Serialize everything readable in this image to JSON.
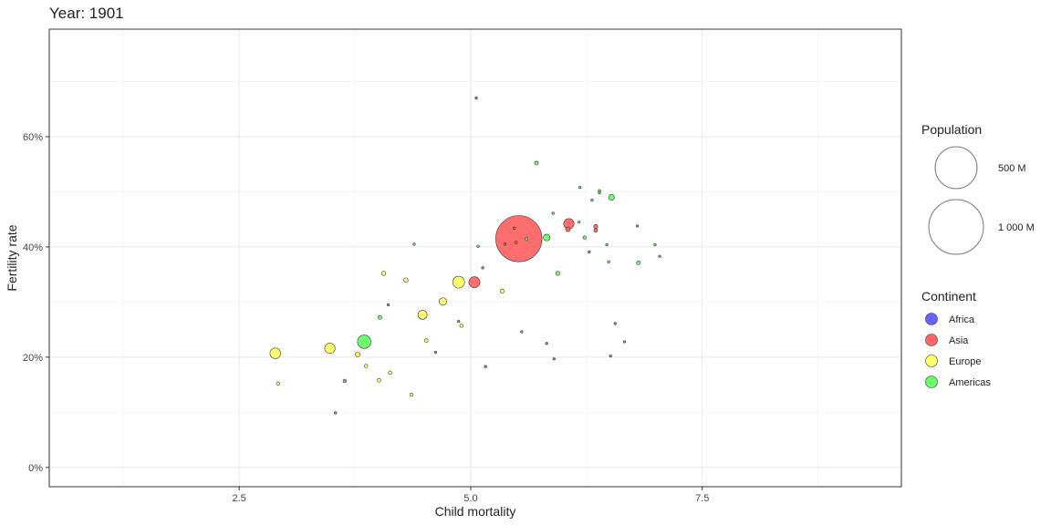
{
  "chart_data": {
    "type": "scatter",
    "title": "Year: 1901",
    "xlabel": "Child mortality",
    "ylabel": "Fertility rate",
    "xlim": [
      0.45,
      9.65
    ],
    "ylim": [
      -0.035,
      0.795
    ],
    "x_ticks": [
      2.5,
      5.0,
      7.5
    ],
    "x_tick_labels": [
      "2.5",
      "5.0",
      "7.5"
    ],
    "x_minor": [
      1.25,
      3.75,
      6.25,
      8.75
    ],
    "y_ticks": [
      0,
      0.2,
      0.4,
      0.6
    ],
    "y_tick_labels": [
      "0%",
      "20%",
      "40%",
      "60%"
    ],
    "y_minor": [
      0.1,
      0.3,
      0.5,
      0.7
    ],
    "grid": true,
    "size_legend": {
      "title": "Population",
      "entries": [
        {
          "label": "500 M",
          "value": 500
        },
        {
          "label": "1 000 M",
          "value": 1000
        }
      ]
    },
    "color_legend": {
      "title": "Continent",
      "entries": [
        {
          "label": "Africa",
          "color": "#6666ff"
        },
        {
          "label": "Asia",
          "color": "#ff6666"
        },
        {
          "label": "Europe",
          "color": "#ffff66"
        },
        {
          "label": "Americas",
          "color": "#66ff66"
        }
      ]
    },
    "other_color": "#999999",
    "points": [
      {
        "x": 5.52,
        "y": 0.415,
        "pop": 380,
        "group": "Asia"
      },
      {
        "x": 5.04,
        "y": 0.336,
        "pop": 22,
        "group": "Asia"
      },
      {
        "x": 6.06,
        "y": 0.442,
        "pop": 19,
        "group": "Asia"
      },
      {
        "x": 6.05,
        "y": 0.432,
        "pop": 4,
        "group": "Asia"
      },
      {
        "x": 6.35,
        "y": 0.437,
        "pop": 3,
        "group": "Asia"
      },
      {
        "x": 6.35,
        "y": 0.43,
        "pop": 2.5,
        "group": "Asia"
      },
      {
        "x": 5.47,
        "y": 0.434,
        "pop": 1.2,
        "group": "Asia"
      },
      {
        "x": 5.49,
        "y": 0.408,
        "pop": 1.2,
        "group": "Asia"
      },
      {
        "x": 5.37,
        "y": 0.405,
        "pop": 0.7,
        "group": "Asia"
      },
      {
        "x": 4.87,
        "y": 0.336,
        "pop": 25,
        "group": "Europe"
      },
      {
        "x": 2.89,
        "y": 0.207,
        "pop": 20,
        "group": "Europe"
      },
      {
        "x": 3.48,
        "y": 0.216,
        "pop": 19,
        "group": "Europe"
      },
      {
        "x": 4.48,
        "y": 0.277,
        "pop": 15,
        "group": "Europe"
      },
      {
        "x": 4.7,
        "y": 0.301,
        "pop": 10,
        "group": "Europe"
      },
      {
        "x": 3.78,
        "y": 0.205,
        "pop": 4,
        "group": "Europe"
      },
      {
        "x": 4.3,
        "y": 0.34,
        "pop": 3.5,
        "group": "Europe"
      },
      {
        "x": 4.06,
        "y": 0.352,
        "pop": 3,
        "group": "Europe"
      },
      {
        "x": 5.34,
        "y": 0.32,
        "pop": 3,
        "group": "Europe"
      },
      {
        "x": 4.52,
        "y": 0.23,
        "pop": 2.5,
        "group": "Europe"
      },
      {
        "x": 4.01,
        "y": 0.158,
        "pop": 2.5,
        "group": "Europe"
      },
      {
        "x": 4.9,
        "y": 0.257,
        "pop": 2,
        "group": "Europe"
      },
      {
        "x": 2.92,
        "y": 0.152,
        "pop": 2,
        "group": "Europe"
      },
      {
        "x": 4.13,
        "y": 0.172,
        "pop": 2,
        "group": "Europe"
      },
      {
        "x": 3.87,
        "y": 0.184,
        "pop": 2,
        "group": "Europe"
      },
      {
        "x": 4.36,
        "y": 0.132,
        "pop": 2,
        "group": "Europe"
      },
      {
        "x": 3.85,
        "y": 0.228,
        "pop": 32,
        "group": "Americas"
      },
      {
        "x": 5.82,
        "y": 0.417,
        "pop": 8,
        "group": "Americas"
      },
      {
        "x": 6.52,
        "y": 0.49,
        "pop": 6,
        "group": "Americas"
      },
      {
        "x": 5.71,
        "y": 0.552,
        "pop": 2.5,
        "group": "Americas"
      },
      {
        "x": 5.94,
        "y": 0.352,
        "pop": 3,
        "group": "Americas"
      },
      {
        "x": 6.81,
        "y": 0.371,
        "pop": 2.5,
        "group": "Americas"
      },
      {
        "x": 6.23,
        "y": 0.417,
        "pop": 2,
        "group": "Americas"
      },
      {
        "x": 4.02,
        "y": 0.272,
        "pop": 2.5,
        "group": "Americas"
      },
      {
        "x": 5.6,
        "y": 0.414,
        "pop": 1.5,
        "group": "Americas"
      },
      {
        "x": 5.08,
        "y": 0.401,
        "pop": 1,
        "group": "Americas"
      },
      {
        "x": 4.39,
        "y": 0.405,
        "pop": 0.8,
        "group": "Americas"
      },
      {
        "x": 6.39,
        "y": 0.502,
        "pop": 0.8,
        "group": "Americas"
      },
      {
        "x": 6.31,
        "y": 0.485,
        "pop": 0.8,
        "group": "Americas"
      },
      {
        "x": 6.18,
        "y": 0.508,
        "pop": 0.5,
        "group": "Americas"
      },
      {
        "x": 6.47,
        "y": 0.404,
        "pop": 0.8,
        "group": "Americas"
      },
      {
        "x": 6.99,
        "y": 0.404,
        "pop": 0.8,
        "group": "Americas"
      },
      {
        "x": 6.17,
        "y": 0.445,
        "pop": 0.5,
        "group": "Americas"
      },
      {
        "x": 5.89,
        "y": 0.461,
        "pop": 0.5,
        "group": "Americas"
      },
      {
        "x": 6.49,
        "y": 0.373,
        "pop": 0.4,
        "group": "Americas"
      },
      {
        "x": 6.39,
        "y": 0.498,
        "pop": 0.4,
        "group": "Americas"
      },
      {
        "x": 3.64,
        "y": 0.157,
        "pop": 2,
        "group": "Other"
      },
      {
        "x": 3.54,
        "y": 0.099,
        "pop": 0.8,
        "group": "Other"
      },
      {
        "x": 5.06,
        "y": 0.67,
        "pop": 0.6,
        "group": "Other"
      },
      {
        "x": 4.11,
        "y": 0.295,
        "pop": 0.5,
        "group": "Other"
      },
      {
        "x": 4.87,
        "y": 0.265,
        "pop": 0.6,
        "group": "Other"
      },
      {
        "x": 4.62,
        "y": 0.209,
        "pop": 0.5,
        "group": "Other"
      },
      {
        "x": 5.16,
        "y": 0.183,
        "pop": 0.5,
        "group": "Other"
      },
      {
        "x": 5.13,
        "y": 0.362,
        "pop": 0.6,
        "group": "Other"
      },
      {
        "x": 5.55,
        "y": 0.246,
        "pop": 0.5,
        "group": "Other"
      },
      {
        "x": 5.82,
        "y": 0.225,
        "pop": 0.5,
        "group": "Other"
      },
      {
        "x": 5.9,
        "y": 0.197,
        "pop": 0.4,
        "group": "Other"
      },
      {
        "x": 6.56,
        "y": 0.261,
        "pop": 0.5,
        "group": "Other"
      },
      {
        "x": 6.66,
        "y": 0.228,
        "pop": 0.5,
        "group": "Other"
      },
      {
        "x": 6.51,
        "y": 0.202,
        "pop": 0.5,
        "group": "Other"
      },
      {
        "x": 6.8,
        "y": 0.438,
        "pop": 0.6,
        "group": "Other"
      },
      {
        "x": 7.04,
        "y": 0.383,
        "pop": 0.4,
        "group": "Other"
      },
      {
        "x": 6.28,
        "y": 0.391,
        "pop": 0.4,
        "group": "Other"
      }
    ]
  }
}
